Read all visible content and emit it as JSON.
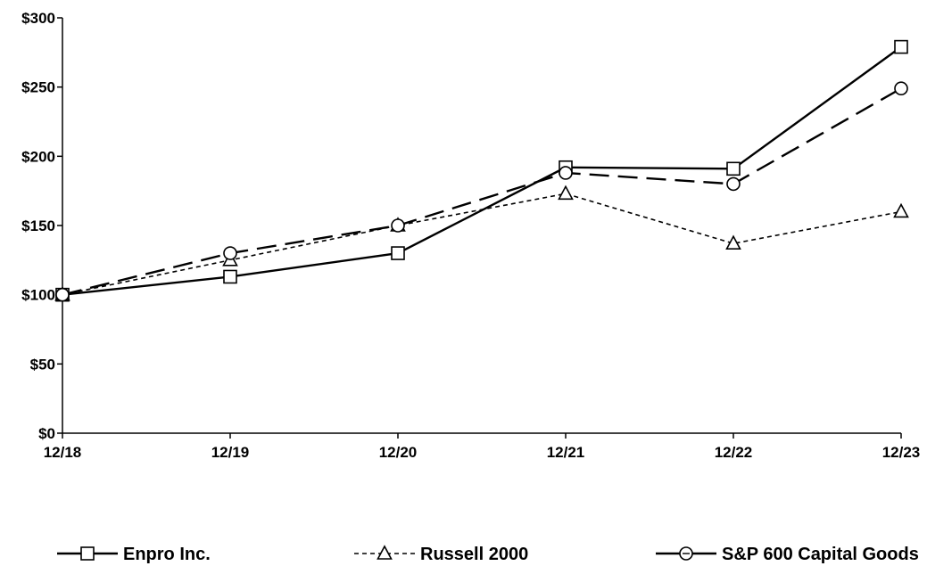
{
  "chart_data": {
    "type": "line",
    "title": "",
    "xlabel": "",
    "ylabel": "",
    "categories": [
      "12/18",
      "12/19",
      "12/20",
      "12/21",
      "12/22",
      "12/23"
    ],
    "ylim": [
      0,
      300
    ],
    "yticks": [
      0,
      50,
      100,
      150,
      200,
      250,
      300
    ],
    "ytick_labels": [
      "$0",
      "$50",
      "$100",
      "$150",
      "$200",
      "$250",
      "$300"
    ],
    "grid": false,
    "legend_position": "bottom",
    "series": [
      {
        "name": "Enpro Inc.",
        "values": [
          100,
          113,
          130,
          192,
          191,
          279
        ],
        "line_style": "solid",
        "marker": "square",
        "color": "#000000"
      },
      {
        "name": "Russell 2000",
        "values": [
          100,
          125,
          150,
          173,
          137,
          160
        ],
        "line_style": "dotted",
        "marker": "triangle",
        "color": "#000000"
      },
      {
        "name": "S&P 600 Capital Goods",
        "values": [
          100,
          130,
          150,
          188,
          180,
          249
        ],
        "line_style": "dashed",
        "marker": "circle",
        "color": "#000000"
      }
    ]
  }
}
